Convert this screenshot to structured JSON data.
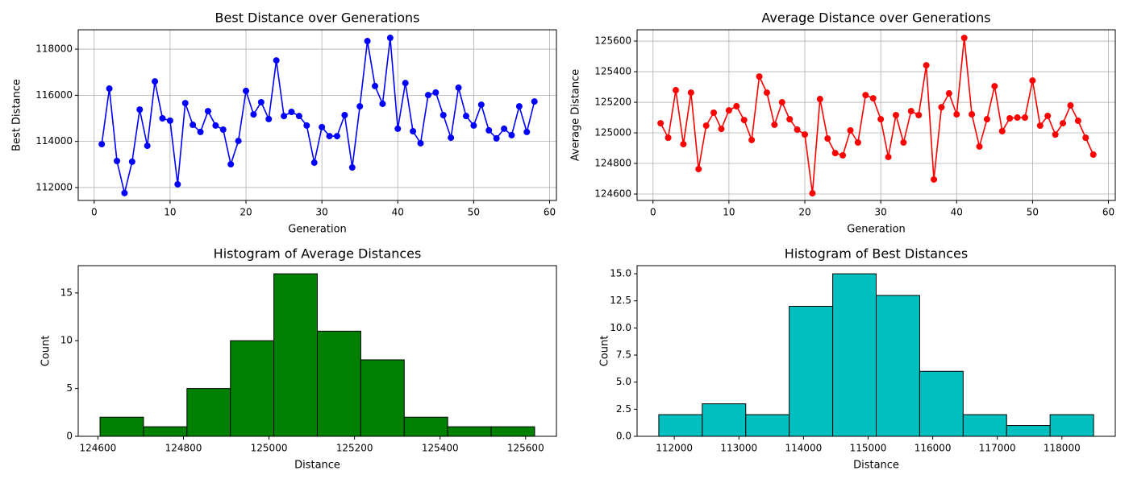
{
  "chart_data": [
    {
      "type": "line",
      "title": "Best Distance over Generations",
      "xlabel": "Generation",
      "ylabel": "Best Distance",
      "color": "#0000ff",
      "grid": true,
      "x": [
        1,
        2,
        3,
        4,
        5,
        6,
        7,
        8,
        9,
        10,
        11,
        12,
        13,
        14,
        15,
        16,
        17,
        18,
        19,
        20,
        21,
        22,
        23,
        24,
        25,
        26,
        27,
        28,
        29,
        30,
        31,
        32,
        33,
        34,
        35,
        36,
        37,
        38,
        39,
        40,
        41,
        42,
        43,
        44,
        45,
        46,
        47,
        48,
        49,
        50,
        51,
        52,
        53,
        54,
        55,
        56,
        57,
        58
      ],
      "values": [
        113880,
        116290,
        113150,
        111760,
        113120,
        115380,
        113810,
        116600,
        115000,
        114900,
        112140,
        115660,
        114720,
        114410,
        115310,
        114690,
        114510,
        113010,
        114020,
        116190,
        115170,
        115700,
        114970,
        117510,
        115100,
        115280,
        115100,
        114690,
        113080,
        114620,
        114230,
        114230,
        115140,
        112870,
        115520,
        118350,
        116400,
        115630,
        118490,
        114550,
        116530,
        114440,
        113920,
        116010,
        116120,
        115140,
        114160,
        116330,
        115100,
        114690,
        115590,
        114480,
        114130,
        114550,
        114270,
        115520,
        114410,
        115730
      ],
      "xlim": [
        -2.1,
        60.9
      ],
      "xticks": [
        0,
        10,
        20,
        30,
        40,
        50,
        60
      ],
      "ylim": [
        111440,
        118840
      ],
      "yticks": [
        112000,
        114000,
        116000,
        118000
      ]
    },
    {
      "type": "line",
      "title": "Average Distance over Generations",
      "xlabel": "Generation",
      "ylabel": "Average Distance",
      "color": "#ff0000",
      "grid": true,
      "x": [
        1,
        2,
        3,
        4,
        5,
        6,
        7,
        8,
        9,
        10,
        11,
        12,
        13,
        14,
        15,
        16,
        17,
        18,
        19,
        20,
        21,
        22,
        23,
        24,
        25,
        26,
        27,
        28,
        29,
        30,
        31,
        32,
        33,
        34,
        35,
        36,
        37,
        38,
        39,
        40,
        41,
        42,
        43,
        44,
        45,
        46,
        47,
        48,
        49,
        50,
        51,
        52,
        53,
        54,
        55,
        56,
        57,
        58
      ],
      "values": [
        125063,
        124968,
        125279,
        124926,
        125263,
        124763,
        125047,
        125132,
        125026,
        125147,
        125174,
        125084,
        124953,
        125368,
        125263,
        125053,
        125200,
        125089,
        125021,
        124989,
        124605,
        125221,
        124963,
        124868,
        124853,
        125016,
        124937,
        125247,
        125226,
        125089,
        124842,
        125116,
        124937,
        125142,
        125116,
        125442,
        124695,
        125168,
        125258,
        125121,
        125621,
        125121,
        124911,
        125089,
        125305,
        125011,
        125095,
        125100,
        125100,
        125342,
        125047,
        125111,
        124989,
        125063,
        125179,
        125079,
        124968,
        124858
      ],
      "xlim": [
        -2.1,
        60.9
      ],
      "xticks": [
        0,
        10,
        20,
        30,
        40,
        50,
        60
      ],
      "ylim": [
        124558,
        125674
      ],
      "yticks": [
        124600,
        124800,
        125000,
        125200,
        125400,
        125600
      ]
    },
    {
      "type": "histogram",
      "title": "Histogram of Average Distances",
      "xlabel": "Distance",
      "ylabel": "Count",
      "color": "#008000",
      "bins": [
        124605,
        124706.6,
        124808.2,
        124909.8,
        125011.4,
        125113,
        125214.6,
        125316.2,
        125417.8,
        125519.4,
        125621
      ],
      "values": [
        2,
        1,
        5,
        10,
        17,
        11,
        8,
        2,
        1,
        1
      ],
      "xlim": [
        124554,
        125672
      ],
      "xticks": [
        124600,
        124800,
        125000,
        125200,
        125400,
        125600
      ],
      "ylim": [
        0,
        17.85
      ],
      "yticks": [
        0,
        5,
        10,
        15
      ]
    },
    {
      "type": "histogram",
      "title": "Histogram of Best Distances",
      "xlabel": "Distance",
      "ylabel": "Count",
      "color": "#00bfbf",
      "bins": [
        111760,
        112433,
        113106,
        113779,
        114452,
        115125,
        115798,
        116471,
        117144,
        117817,
        118490
      ],
      "values": [
        2,
        3,
        2,
        12,
        15,
        13,
        6,
        2,
        1,
        2
      ],
      "xlim": [
        111424,
        118826
      ],
      "xticks": [
        112000,
        113000,
        114000,
        115000,
        116000,
        117000,
        118000
      ],
      "ylim": [
        0,
        15.75
      ],
      "yticks": [
        {
          "value": 0,
          "label": "0.0"
        },
        {
          "value": 2.5,
          "label": "2.5"
        },
        {
          "value": 5,
          "label": "5.0"
        },
        {
          "value": 7.5,
          "label": "7.5"
        },
        {
          "value": 10,
          "label": "10.0"
        },
        {
          "value": 12.5,
          "label": "12.5"
        },
        {
          "value": 15,
          "label": "15.0"
        }
      ]
    }
  ]
}
